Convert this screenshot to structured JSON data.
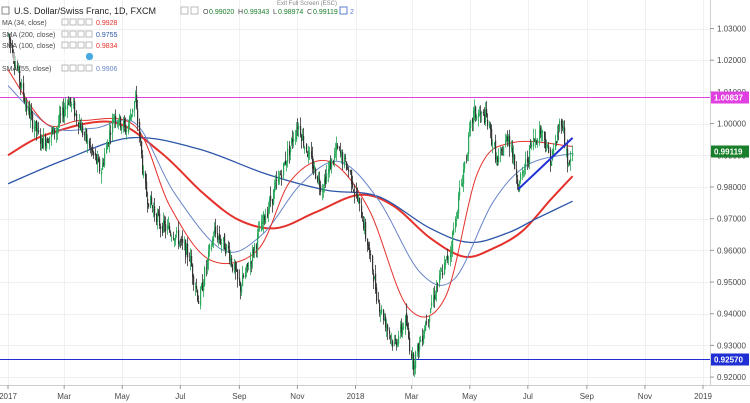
{
  "header": {
    "symbol_title": "U.S. Dollar/Swiss Franc, 1D, FXCM",
    "ohlc": {
      "open_label": "O",
      "open": "0.99020",
      "high_label": "H",
      "high": "0.99343",
      "low_label": "L",
      "low": "0.98974",
      "close_label": "C",
      "close": "0.99119"
    },
    "indicator_count": "2",
    "exit_fullscreen": "Exit Full Screen (ESC)"
  },
  "indicators": [
    {
      "label": "MA (34, close)",
      "value": "0.9928",
      "color": "#e5312b"
    },
    {
      "label": "SMA (200, close)",
      "value": "0.9755",
      "color": "#2c56a8"
    },
    {
      "label": "SMA (100, close)",
      "value": "0.9834",
      "color": "#e5312b"
    },
    {
      "label": "SMA (55, close)",
      "value": "0.9906",
      "color": "#6a86c8"
    }
  ],
  "colors": {
    "up_candle": "#26a85a",
    "down_candle": "#333333",
    "magenta_line": "#e040e0",
    "blue_line": "#1f2fd4",
    "trendline": "#1f2fd4",
    "sma100": "#e5312b",
    "sma200": "#2c56a8",
    "sma55": "#6a86c8",
    "ma34": "#e5312b",
    "price_label_bg": "#1a7f2a"
  },
  "chart_data": {
    "type": "candlestick",
    "title": "U.S. Dollar/Swiss Franc, 1D, FXCM",
    "y_ticks": [
      "1.03000",
      "1.02000",
      "1.01000",
      "1.00000",
      "0.99000",
      "0.98000",
      "0.97000",
      "0.96000",
      "0.95000",
      "0.94000",
      "0.93000",
      "0.92000"
    ],
    "ylim": [
      0.9175,
      1.039
    ],
    "x_ticks": [
      "2017",
      "Mar",
      "May",
      "Jul",
      "Sep",
      "Nov",
      "2018",
      "Mar",
      "May",
      "Jul",
      "Sep",
      "Nov",
      "2019"
    ],
    "horizontal_levels": [
      {
        "value": 1.00837,
        "label": "1.00837",
        "color": "#e040e0"
      },
      {
        "value": 0.9257,
        "label": "0.92570",
        "color": "#1f2fd4"
      }
    ],
    "last_price": {
      "value": 0.99119,
      "label": "0.99119"
    },
    "trendline": {
      "start": {
        "date": "2018-06-21",
        "y": 0.9793
      },
      "end": {
        "date": "2018-08-17",
        "y": 0.9955
      }
    },
    "close_path": [
      {
        "date": "2017-01-01",
        "y": 1.028
      },
      {
        "date": "2017-01-20",
        "y": 1.005
      },
      {
        "date": "2017-02-05",
        "y": 0.994
      },
      {
        "date": "2017-02-20",
        "y": 0.998
      },
      {
        "date": "2017-03-05",
        "y": 1.008
      },
      {
        "date": "2017-03-25",
        "y": 0.994
      },
      {
        "date": "2017-04-08",
        "y": 0.985
      },
      {
        "date": "2017-04-22",
        "y": 1.003
      },
      {
        "date": "2017-05-05",
        "y": 0.998
      },
      {
        "date": "2017-05-14",
        "y": 1.008
      },
      {
        "date": "2017-05-25",
        "y": 0.978
      },
      {
        "date": "2017-06-10",
        "y": 0.968
      },
      {
        "date": "2017-06-25",
        "y": 0.965
      },
      {
        "date": "2017-07-10",
        "y": 0.958
      },
      {
        "date": "2017-07-20",
        "y": 0.944
      },
      {
        "date": "2017-08-05",
        "y": 0.966
      },
      {
        "date": "2017-08-20",
        "y": 0.96
      },
      {
        "date": "2017-09-01",
        "y": 0.948
      },
      {
        "date": "2017-09-10",
        "y": 0.955
      },
      {
        "date": "2017-09-25",
        "y": 0.969
      },
      {
        "date": "2017-10-15",
        "y": 0.985
      },
      {
        "date": "2017-11-01",
        "y": 1.0
      },
      {
        "date": "2017-11-12",
        "y": 0.99
      },
      {
        "date": "2017-11-26",
        "y": 0.98
      },
      {
        "date": "2017-12-12",
        "y": 0.992
      },
      {
        "date": "2017-12-25",
        "y": 0.985
      },
      {
        "date": "2018-01-08",
        "y": 0.97
      },
      {
        "date": "2018-01-25",
        "y": 0.943
      },
      {
        "date": "2018-02-10",
        "y": 0.93
      },
      {
        "date": "2018-02-22",
        "y": 0.938
      },
      {
        "date": "2018-03-02",
        "y": 0.924
      },
      {
        "date": "2018-03-15",
        "y": 0.937
      },
      {
        "date": "2018-03-25",
        "y": 0.947
      },
      {
        "date": "2018-04-10",
        "y": 0.96
      },
      {
        "date": "2018-04-22",
        "y": 0.982
      },
      {
        "date": "2018-05-04",
        "y": 1.003
      },
      {
        "date": "2018-05-18",
        "y": 1.002
      },
      {
        "date": "2018-05-30",
        "y": 0.987
      },
      {
        "date": "2018-06-10",
        "y": 0.997
      },
      {
        "date": "2018-06-21",
        "y": 0.98
      },
      {
        "date": "2018-07-05",
        "y": 0.994
      },
      {
        "date": "2018-07-15",
        "y": 0.998
      },
      {
        "date": "2018-07-25",
        "y": 0.988
      },
      {
        "date": "2018-08-05",
        "y": 1.002
      },
      {
        "date": "2018-08-12",
        "y": 0.986
      },
      {
        "date": "2018-08-17",
        "y": 0.991
      }
    ],
    "series": [
      {
        "name": "SMA (100, close)",
        "color": "#e5312b",
        "points": [
          {
            "date": "2017-01-01",
            "y": 0.99
          },
          {
            "date": "2017-02-10",
            "y": 0.9965
          },
          {
            "date": "2017-04-20",
            "y": 1.0005
          },
          {
            "date": "2017-06-10",
            "y": 0.991
          },
          {
            "date": "2017-07-25",
            "y": 0.978
          },
          {
            "date": "2017-09-01",
            "y": 0.9695
          },
          {
            "date": "2017-10-10",
            "y": 0.967
          },
          {
            "date": "2017-11-20",
            "y": 0.972
          },
          {
            "date": "2018-01-05",
            "y": 0.9775
          },
          {
            "date": "2018-02-10",
            "y": 0.974
          },
          {
            "date": "2018-03-20",
            "y": 0.964
          },
          {
            "date": "2018-04-25",
            "y": 0.958
          },
          {
            "date": "2018-05-25",
            "y": 0.9605
          },
          {
            "date": "2018-06-25",
            "y": 0.966
          },
          {
            "date": "2018-07-25",
            "y": 0.976
          },
          {
            "date": "2018-08-17",
            "y": 0.9834
          }
        ]
      },
      {
        "name": "SMA (200, close)",
        "color": "#2c56a8",
        "points": [
          {
            "date": "2017-01-01",
            "y": 0.981
          },
          {
            "date": "2017-03-01",
            "y": 0.9885
          },
          {
            "date": "2017-05-10",
            "y": 0.9955
          },
          {
            "date": "2017-07-20",
            "y": 0.992
          },
          {
            "date": "2017-09-30",
            "y": 0.984
          },
          {
            "date": "2017-12-01",
            "y": 0.979
          },
          {
            "date": "2018-01-25",
            "y": 0.977
          },
          {
            "date": "2018-03-20",
            "y": 0.967
          },
          {
            "date": "2018-05-01",
            "y": 0.9625
          },
          {
            "date": "2018-06-10",
            "y": 0.9655
          },
          {
            "date": "2018-07-10",
            "y": 0.97
          },
          {
            "date": "2018-08-17",
            "y": 0.9755
          }
        ]
      },
      {
        "name": "SMA (55, close)",
        "color": "#6a86c8",
        "points": [
          {
            "date": "2017-01-01",
            "y": 1.012
          },
          {
            "date": "2017-02-15",
            "y": 0.999
          },
          {
            "date": "2017-04-01",
            "y": 0.9985
          },
          {
            "date": "2017-05-15",
            "y": 1.0
          },
          {
            "date": "2017-06-25",
            "y": 0.978
          },
          {
            "date": "2017-08-15",
            "y": 0.96
          },
          {
            "date": "2017-09-25",
            "y": 0.965
          },
          {
            "date": "2017-11-05",
            "y": 0.981
          },
          {
            "date": "2017-12-15",
            "y": 0.988
          },
          {
            "date": "2018-01-25",
            "y": 0.976
          },
          {
            "date": "2018-03-10",
            "y": 0.953
          },
          {
            "date": "2018-04-15",
            "y": 0.951
          },
          {
            "date": "2018-05-25",
            "y": 0.975
          },
          {
            "date": "2018-07-01",
            "y": 0.987
          },
          {
            "date": "2018-08-17",
            "y": 0.9906
          }
        ]
      },
      {
        "name": "MA (34, close)",
        "color": "#e5312b",
        "points": [
          {
            "date": "2017-01-01",
            "y": 1.017
          },
          {
            "date": "2017-02-10",
            "y": 1.0
          },
          {
            "date": "2017-03-20",
            "y": 1.001
          },
          {
            "date": "2017-05-15",
            "y": 0.999
          },
          {
            "date": "2017-06-20",
            "y": 0.974
          },
          {
            "date": "2017-08-01",
            "y": 0.957
          },
          {
            "date": "2017-09-20",
            "y": 0.96
          },
          {
            "date": "2017-10-25",
            "y": 0.982
          },
          {
            "date": "2017-12-05",
            "y": 0.988
          },
          {
            "date": "2018-01-15",
            "y": 0.973
          },
          {
            "date": "2018-02-25",
            "y": 0.942
          },
          {
            "date": "2018-04-05",
            "y": 0.945
          },
          {
            "date": "2018-05-10",
            "y": 0.985
          },
          {
            "date": "2018-06-15",
            "y": 0.994
          },
          {
            "date": "2018-08-17",
            "y": 0.9928
          }
        ]
      }
    ]
  }
}
